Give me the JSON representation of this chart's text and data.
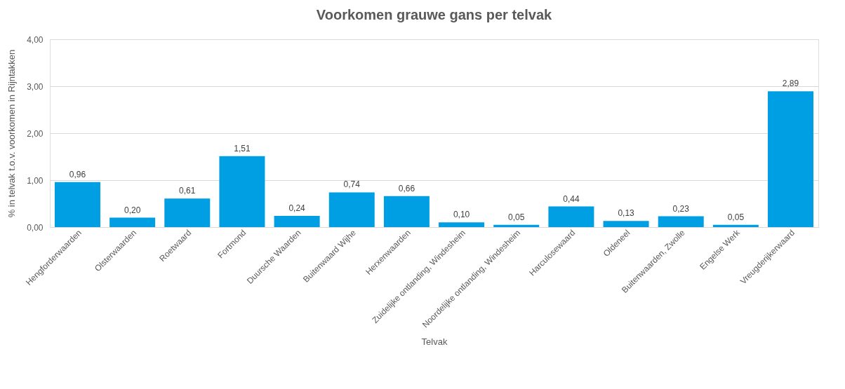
{
  "chart_data": {
    "type": "bar",
    "title": "Voorkomen grauwe gans per telvak",
    "xlabel": "Telvak",
    "ylabel": "% in telvak t.o.v. voorkomen in Rijntakken",
    "categories": [
      "Hengforderwaarden",
      "Olsterwaarden",
      "Roetwaard",
      "Fortmond",
      "Duursche Waarden",
      "Buitenwaard Wijhe",
      "Herxenwaarden",
      "Zuidelijke ontlanding, Windesheim",
      "Noordelijke ontlanding, Windesheim",
      "Harculosewaard",
      "Oldeneel",
      "Buitenwaarden, Zwolle",
      "Engelse Werk",
      "Vreugderijkerwaard"
    ],
    "values": [
      0.96,
      0.2,
      0.61,
      1.51,
      0.24,
      0.74,
      0.66,
      0.1,
      0.05,
      0.44,
      0.13,
      0.23,
      0.05,
      2.89
    ],
    "value_labels": [
      "0,96",
      "0,20",
      "0,61",
      "1,51",
      "0,24",
      "0,74",
      "0,66",
      "0,10",
      "0,05",
      "0,44",
      "0,13",
      "0,23",
      "0,05",
      "2,89"
    ],
    "color": "#009fe3",
    "ylim": [
      0,
      4
    ],
    "yticks": [
      {
        "value": 0,
        "label": "0,00"
      },
      {
        "value": 1,
        "label": "1,00"
      },
      {
        "value": 2,
        "label": "2,00"
      },
      {
        "value": 3,
        "label": "3,00"
      },
      {
        "value": 4,
        "label": "4,00"
      }
    ],
    "grid": "y"
  }
}
